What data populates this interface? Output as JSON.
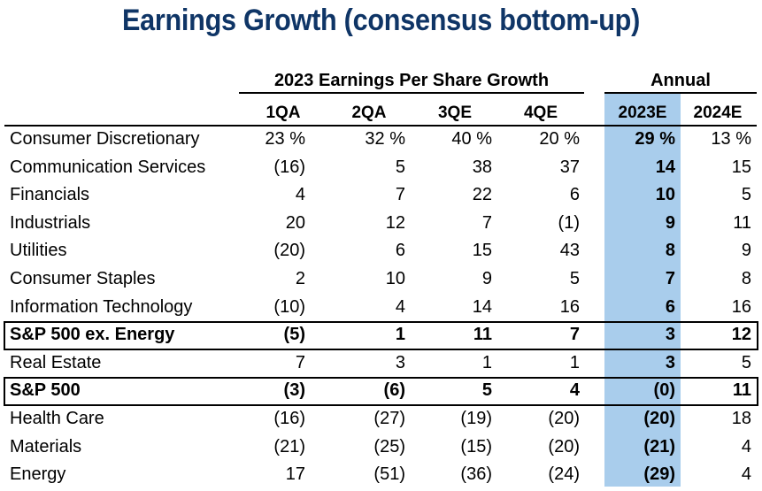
{
  "title": "Earnings Growth (consensus bottom-up)",
  "header": {
    "eps_group": "2023 Earnings Per Share Growth",
    "annual_group": "Annual",
    "columns": [
      "1QA",
      "2QA",
      "3QE",
      "4QE",
      "2023E",
      "2024E"
    ]
  },
  "colors": {
    "title": "#0f3566",
    "highlight": "#a9cdec"
  },
  "rows": [
    {
      "name": "Consumer Discretionary",
      "values": [
        "23 %",
        "32 %",
        "40 %",
        "20 %",
        "29 %",
        "13 %"
      ],
      "boxed": false
    },
    {
      "name": "Communication Services",
      "values": [
        "(16)",
        "5",
        "38",
        "37",
        "14",
        "15"
      ],
      "boxed": false
    },
    {
      "name": "Financials",
      "values": [
        "4",
        "7",
        "22",
        "6",
        "10",
        "5"
      ],
      "boxed": false
    },
    {
      "name": "Industrials",
      "values": [
        "20",
        "12",
        "7",
        "(1)",
        "9",
        "11"
      ],
      "boxed": false
    },
    {
      "name": "Utilities",
      "values": [
        "(20)",
        "6",
        "15",
        "43",
        "8",
        "9"
      ],
      "boxed": false
    },
    {
      "name": "Consumer Staples",
      "values": [
        "2",
        "10",
        "9",
        "5",
        "7",
        "8"
      ],
      "boxed": false
    },
    {
      "name": "Information Technology",
      "values": [
        "(10)",
        "4",
        "14",
        "16",
        "6",
        "16"
      ],
      "boxed": false
    },
    {
      "name": "S&P 500 ex. Energy",
      "values": [
        "(5)",
        "1",
        "11",
        "7",
        "3",
        "12"
      ],
      "boxed": true
    },
    {
      "name": "Real Estate",
      "values": [
        "7",
        "3",
        "1",
        "1",
        "3",
        "5"
      ],
      "boxed": false
    },
    {
      "name": "S&P 500",
      "values": [
        "(3)",
        "(6)",
        "5",
        "4",
        "(0)",
        "11"
      ],
      "boxed": true
    },
    {
      "name": "Health Care",
      "values": [
        "(16)",
        "(27)",
        "(19)",
        "(20)",
        "(20)",
        "18"
      ],
      "boxed": false
    },
    {
      "name": "Materials",
      "values": [
        "(21)",
        "(25)",
        "(15)",
        "(20)",
        "(21)",
        "4"
      ],
      "boxed": false
    },
    {
      "name": "Energy",
      "values": [
        "17",
        "(51)",
        "(36)",
        "(24)",
        "(29)",
        "4"
      ],
      "boxed": false
    }
  ]
}
